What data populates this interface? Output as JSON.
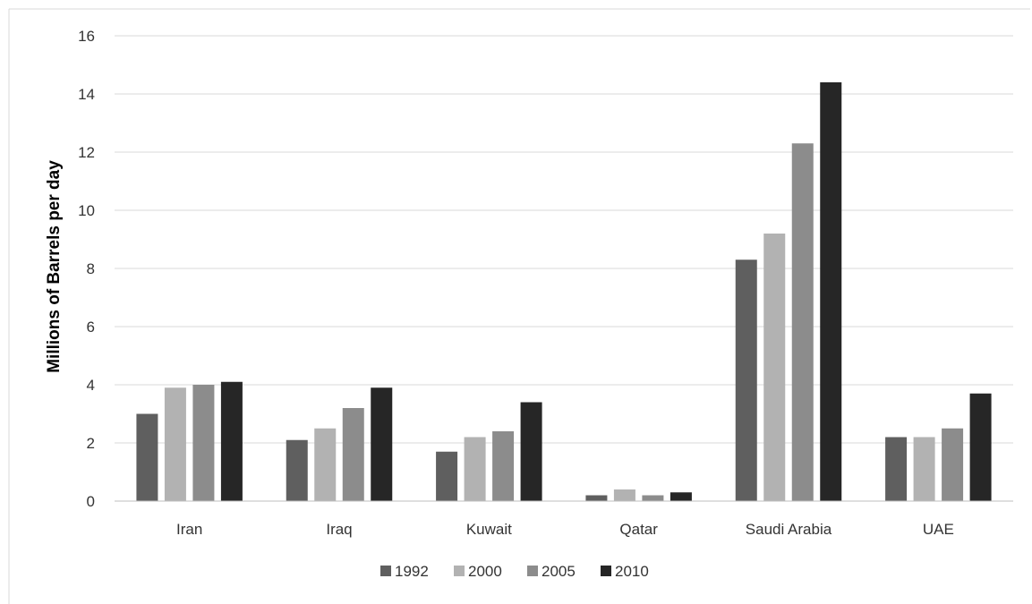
{
  "chart_data": {
    "type": "bar",
    "title": "",
    "xlabel": "",
    "ylabel": "Millions of Barrels per day",
    "ylim": [
      0,
      16
    ],
    "yticks": [
      0,
      2,
      4,
      6,
      8,
      10,
      12,
      14,
      16
    ],
    "grid": "horizontal",
    "legend_position": "bottom",
    "categories": [
      "Iran",
      "Iraq",
      "Kuwait",
      "Qatar",
      "Saudi Arabia",
      "UAE"
    ],
    "series": [
      {
        "name": "1992",
        "color": "#5f5f5f",
        "values": [
          3.0,
          2.1,
          1.7,
          0.2,
          8.3,
          2.2
        ]
      },
      {
        "name": "2000",
        "color": "#b2b2b2",
        "values": [
          3.9,
          2.5,
          2.2,
          0.4,
          9.2,
          2.2
        ]
      },
      {
        "name": "2005",
        "color": "#8c8c8c",
        "values": [
          4.0,
          3.2,
          2.4,
          0.2,
          12.3,
          2.5
        ]
      },
      {
        "name": "2010",
        "color": "#262626",
        "values": [
          4.1,
          3.9,
          3.4,
          0.3,
          14.4,
          3.7
        ]
      }
    ]
  }
}
